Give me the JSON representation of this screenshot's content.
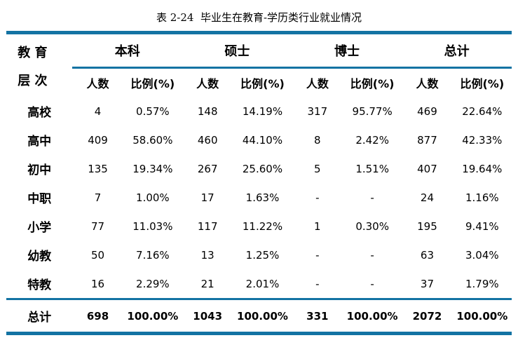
{
  "title": "表 2-24  毕业生在教育-学历类行业就业情况",
  "table": {
    "row_header_line1": "教 育",
    "row_header_line2": "层 次",
    "groups": [
      {
        "label": "本科"
      },
      {
        "label": "硕士"
      },
      {
        "label": "博士"
      },
      {
        "label": "总计"
      }
    ],
    "subheader_count": "人数",
    "subheader_ratio": "比例(%)",
    "rows": [
      {
        "label": "高校",
        "cells": [
          "4",
          "0.57%",
          "148",
          "14.19%",
          "317",
          "95.77%",
          "469",
          "22.64%"
        ]
      },
      {
        "label": "高中",
        "cells": [
          "409",
          "58.60%",
          "460",
          "44.10%",
          "8",
          "2.42%",
          "877",
          "42.33%"
        ]
      },
      {
        "label": "初中",
        "cells": [
          "135",
          "19.34%",
          "267",
          "25.60%",
          "5",
          "1.51%",
          "407",
          "19.64%"
        ]
      },
      {
        "label": "中职",
        "cells": [
          "7",
          "1.00%",
          "17",
          "1.63%",
          "-",
          "-",
          "24",
          "1.16%"
        ]
      },
      {
        "label": "小学",
        "cells": [
          "77",
          "11.03%",
          "117",
          "11.22%",
          "1",
          "0.30%",
          "195",
          "9.41%"
        ]
      },
      {
        "label": "幼教",
        "cells": [
          "50",
          "7.16%",
          "13",
          "1.25%",
          "-",
          "-",
          "63",
          "3.04%"
        ]
      },
      {
        "label": "特教",
        "cells": [
          "16",
          "2.29%",
          "21",
          "2.01%",
          "-",
          "-",
          "37",
          "1.79%"
        ]
      }
    ],
    "total_row": {
      "label": "总计",
      "cells": [
        "698",
        "100.00%",
        "1043",
        "100.00%",
        "331",
        "100.00%",
        "2072",
        "100.00%"
      ]
    }
  },
  "colors": {
    "rule": "#1373a3",
    "text": "#000000",
    "background": "#ffffff"
  }
}
